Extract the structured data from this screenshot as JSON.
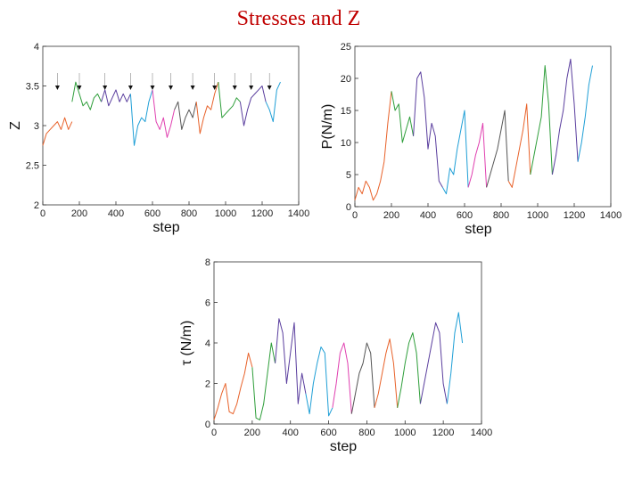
{
  "slide": {
    "title": "Stresses and Z"
  },
  "colors": {
    "segments": [
      "#e8622a",
      "#2e9e3a",
      "#5a3e9e",
      "#1f9fd6",
      "#e040b0",
      "#555555"
    ]
  },
  "chart_data": [
    {
      "id": "z",
      "type": "line",
      "xlabel": "step",
      "ylabel": "Z",
      "xlim": [
        0,
        1400
      ],
      "ylim": [
        2,
        4
      ],
      "xticks": [
        0,
        200,
        400,
        600,
        800,
        1000,
        1200,
        1400
      ],
      "yticks": [
        2,
        2.5,
        3,
        3.5,
        4
      ],
      "ytick_labels": [
        "2",
        "2.5",
        "3",
        "3.5",
        "4"
      ],
      "annotations": {
        "marker": "arrow-down",
        "x": [
          80,
          200,
          340,
          480,
          600,
          700,
          820,
          940,
          1050,
          1140,
          1240
        ]
      },
      "series": [
        {
          "name": "segment 1",
          "x": [
            0,
            20,
            40,
            60,
            80,
            100,
            120,
            140,
            160
          ],
          "y": [
            2.75,
            2.9,
            2.95,
            3.0,
            3.05,
            2.95,
            3.1,
            2.95,
            3.05
          ]
        },
        {
          "name": "segment 2",
          "x": [
            160,
            180,
            200,
            220,
            240,
            260,
            280,
            300,
            320
          ],
          "y": [
            3.3,
            3.55,
            3.4,
            3.25,
            3.3,
            3.2,
            3.35,
            3.4,
            3.3
          ]
        },
        {
          "name": "segment 3",
          "x": [
            320,
            340,
            360,
            380,
            400,
            420,
            440,
            460,
            480
          ],
          "y": [
            3.3,
            3.45,
            3.25,
            3.35,
            3.45,
            3.3,
            3.4,
            3.3,
            3.4
          ]
        },
        {
          "name": "segment 4",
          "x": [
            480,
            500,
            520,
            540,
            560,
            580,
            600
          ],
          "y": [
            3.4,
            2.75,
            3.0,
            3.1,
            3.05,
            3.3,
            3.45
          ]
        },
        {
          "name": "segment 5",
          "x": [
            600,
            620,
            640,
            660,
            680,
            700,
            720
          ],
          "y": [
            3.45,
            3.05,
            2.95,
            3.1,
            2.85,
            3.0,
            3.2
          ]
        },
        {
          "name": "segment 6",
          "x": [
            720,
            740,
            760,
            780,
            800,
            820,
            840
          ],
          "y": [
            3.2,
            3.3,
            2.95,
            3.1,
            3.2,
            3.1,
            3.3
          ]
        },
        {
          "name": "segment 7",
          "x": [
            840,
            860,
            880,
            900,
            920,
            940,
            960
          ],
          "y": [
            3.3,
            2.9,
            3.1,
            3.25,
            3.2,
            3.4,
            3.55
          ]
        },
        {
          "name": "segment 8",
          "x": [
            960,
            980,
            1000,
            1020,
            1040,
            1060,
            1080
          ],
          "y": [
            3.55,
            3.1,
            3.15,
            3.2,
            3.25,
            3.35,
            3.3
          ]
        },
        {
          "name": "segment 9",
          "x": [
            1080,
            1100,
            1120,
            1140,
            1160,
            1180,
            1200,
            1220
          ],
          "y": [
            3.3,
            3.0,
            3.2,
            3.35,
            3.4,
            3.45,
            3.5,
            3.3
          ]
        },
        {
          "name": "segment 10",
          "x": [
            1220,
            1240,
            1260,
            1280,
            1300
          ],
          "y": [
            3.3,
            3.2,
            3.05,
            3.45,
            3.55
          ]
        }
      ]
    },
    {
      "id": "p",
      "type": "line",
      "xlabel": "step",
      "ylabel": "P(N/m)",
      "xlim": [
        0,
        1400
      ],
      "ylim": [
        0,
        25
      ],
      "xticks": [
        0,
        200,
        400,
        600,
        800,
        1000,
        1200,
        1400
      ],
      "yticks": [
        0,
        5,
        10,
        15,
        20,
        25
      ],
      "ytick_labels": [
        "0",
        "5",
        "10",
        "15",
        "20",
        "25"
      ],
      "series": [
        {
          "name": "segment 1",
          "x": [
            0,
            20,
            40,
            60,
            80,
            100,
            120,
            140,
            160,
            180,
            200
          ],
          "y": [
            1,
            3,
            2,
            4,
            3,
            1,
            2,
            4,
            7,
            13,
            18
          ]
        },
        {
          "name": "segment 2",
          "x": [
            200,
            220,
            240,
            260,
            280,
            300,
            320
          ],
          "y": [
            18,
            15,
            16,
            10,
            12,
            14,
            11
          ]
        },
        {
          "name": "segment 3",
          "x": [
            320,
            340,
            360,
            380,
            400,
            420,
            440,
            460,
            480
          ],
          "y": [
            11,
            20,
            21,
            17,
            9,
            13,
            11,
            4,
            3
          ]
        },
        {
          "name": "segment 4",
          "x": [
            480,
            500,
            520,
            540,
            560,
            580,
            600,
            620
          ],
          "y": [
            3,
            2,
            6,
            5,
            9,
            12,
            15,
            3
          ]
        },
        {
          "name": "segment 5",
          "x": [
            620,
            640,
            660,
            680,
            700,
            720
          ],
          "y": [
            3,
            5,
            8,
            10,
            13,
            3
          ]
        },
        {
          "name": "segment 6",
          "x": [
            720,
            740,
            760,
            780,
            800,
            820,
            840
          ],
          "y": [
            3,
            5,
            7,
            9,
            12,
            15,
            4
          ]
        },
        {
          "name": "segment 7",
          "x": [
            840,
            860,
            880,
            900,
            920,
            940,
            960
          ],
          "y": [
            4,
            3,
            6,
            9,
            12,
            16,
            5
          ]
        },
        {
          "name": "segment 8",
          "x": [
            960,
            980,
            1000,
            1020,
            1040,
            1060,
            1080
          ],
          "y": [
            5,
            8,
            11,
            14,
            22,
            16,
            5
          ]
        },
        {
          "name": "segment 9",
          "x": [
            1080,
            1100,
            1120,
            1140,
            1160,
            1180,
            1200,
            1220
          ],
          "y": [
            5,
            8,
            12,
            15,
            20,
            23,
            16,
            7
          ]
        },
        {
          "name": "segment 10",
          "x": [
            1220,
            1240,
            1260,
            1280,
            1300
          ],
          "y": [
            7,
            10,
            14,
            19,
            22
          ]
        }
      ]
    },
    {
      "id": "tau",
      "type": "line",
      "xlabel": "step",
      "ylabel": "τ (N/m)",
      "xlim": [
        0,
        1400
      ],
      "ylim": [
        0,
        8
      ],
      "xticks": [
        0,
        200,
        400,
        600,
        800,
        1000,
        1200,
        1400
      ],
      "yticks": [
        0,
        2,
        4,
        6,
        8
      ],
      "ytick_labels": [
        "0",
        "2",
        "4",
        "6",
        "8"
      ],
      "series": [
        {
          "name": "segment 1",
          "x": [
            0,
            20,
            40,
            60,
            80,
            100,
            120,
            140,
            160,
            180,
            200
          ],
          "y": [
            0.2,
            0.8,
            1.5,
            2.0,
            0.6,
            0.5,
            1.0,
            1.8,
            2.5,
            3.5,
            2.8
          ]
        },
        {
          "name": "segment 2",
          "x": [
            200,
            220,
            240,
            260,
            280,
            300,
            320
          ],
          "y": [
            2.8,
            0.3,
            0.2,
            1.0,
            2.5,
            4.0,
            3.0
          ]
        },
        {
          "name": "segment 3",
          "x": [
            320,
            340,
            360,
            380,
            400,
            420,
            440,
            460,
            480
          ],
          "y": [
            3.0,
            5.2,
            4.5,
            2.0,
            3.5,
            5.0,
            1.0,
            2.5,
            1.5
          ]
        },
        {
          "name": "segment 4",
          "x": [
            480,
            500,
            520,
            540,
            560,
            580,
            600,
            620
          ],
          "y": [
            1.5,
            0.5,
            2.0,
            3.0,
            3.8,
            3.5,
            0.4,
            0.8
          ]
        },
        {
          "name": "segment 5",
          "x": [
            620,
            640,
            660,
            680,
            700,
            720
          ],
          "y": [
            0.8,
            2.0,
            3.5,
            4.0,
            3.0,
            0.5
          ]
        },
        {
          "name": "segment 6",
          "x": [
            720,
            740,
            760,
            780,
            800,
            820,
            840
          ],
          "y": [
            0.5,
            1.5,
            2.5,
            3.0,
            4.0,
            3.5,
            0.8
          ]
        },
        {
          "name": "segment 7",
          "x": [
            840,
            860,
            880,
            900,
            920,
            940,
            960
          ],
          "y": [
            0.8,
            1.5,
            2.5,
            3.5,
            4.2,
            3.0,
            0.8
          ]
        },
        {
          "name": "segment 8",
          "x": [
            960,
            980,
            1000,
            1020,
            1040,
            1060,
            1080
          ],
          "y": [
            0.8,
            1.8,
            3.0,
            4.0,
            4.5,
            3.5,
            1.0
          ]
        },
        {
          "name": "segment 9",
          "x": [
            1080,
            1100,
            1120,
            1140,
            1160,
            1180,
            1200,
            1220
          ],
          "y": [
            1.0,
            2.0,
            3.0,
            4.0,
            5.0,
            4.5,
            2.0,
            1.0
          ]
        },
        {
          "name": "segment 10",
          "x": [
            1220,
            1240,
            1260,
            1280,
            1300
          ],
          "y": [
            1.0,
            2.5,
            4.5,
            5.5,
            4.0
          ]
        }
      ]
    }
  ]
}
